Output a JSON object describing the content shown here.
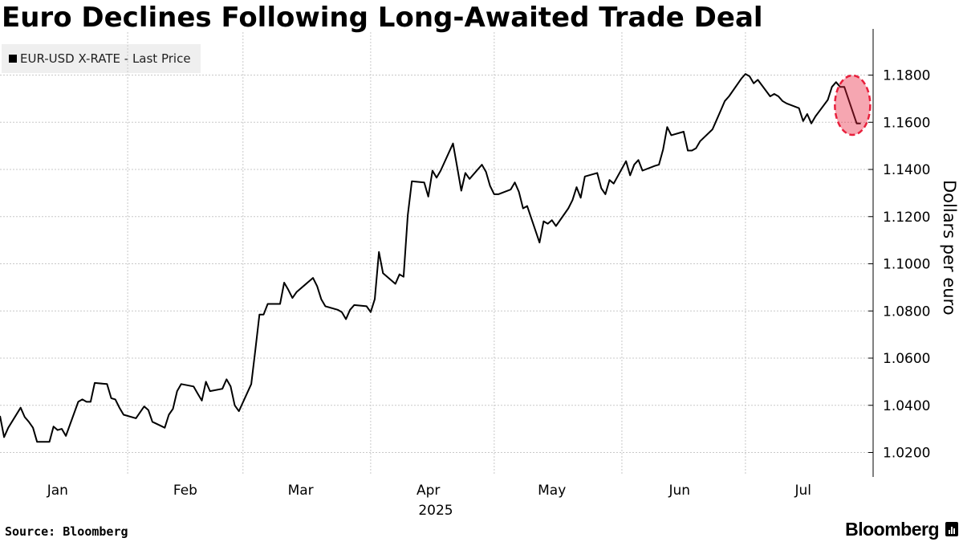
{
  "title": "Euro Declines Following Long-Awaited Trade Deal",
  "legend": {
    "label": "EUR-USD X-RATE - Last Price",
    "color": "#000000"
  },
  "source": "Source: Bloomberg",
  "brand": "Bloomberg",
  "brand_icon": "bloomberg-terminal-icon",
  "chart_data": {
    "type": "line",
    "title": "Euro Declines Following Long-Awaited Trade Deal",
    "xlabel": "2025",
    "ylabel": "Dollars per euro",
    "x_tick_labels": [
      "Jan",
      "Feb",
      "Mar",
      "Apr",
      "May",
      "Jun",
      "Jul"
    ],
    "x_tick_days": [
      15,
      46,
      74,
      105,
      135,
      166,
      196
    ],
    "y_ticks": [
      1.02,
      1.04,
      1.06,
      1.08,
      1.1,
      1.12,
      1.14,
      1.16,
      1.18
    ],
    "y_tick_labels": [
      "1.0200",
      "1.0400",
      "1.0600",
      "1.0800",
      "1.1000",
      "1.1200",
      "1.1400",
      "1.1600",
      "1.1800"
    ],
    "ylim": [
      1.0103,
      1.1955
    ],
    "xlim": [
      "2025-01-01",
      "2025-08-01"
    ],
    "y_axis_side": "right",
    "grid": true,
    "highlight": {
      "x_range": [
        "2025-07-25",
        "2025-07-29"
      ],
      "color": "#e8203c"
    },
    "series": [
      {
        "name": "EUR-USD X-RATE - Last Price",
        "color": "#000000",
        "x": [
          "2025-01-01",
          "2025-01-02",
          "2025-01-03",
          "2025-01-06",
          "2025-01-07",
          "2025-01-08",
          "2025-01-09",
          "2025-01-10",
          "2025-01-13",
          "2025-01-14",
          "2025-01-15",
          "2025-01-16",
          "2025-01-17",
          "2025-01-20",
          "2025-01-21",
          "2025-01-22",
          "2025-01-23",
          "2025-01-24",
          "2025-01-27",
          "2025-01-28",
          "2025-01-29",
          "2025-01-30",
          "2025-01-31",
          "2025-02-03",
          "2025-02-04",
          "2025-02-05",
          "2025-02-06",
          "2025-02-07",
          "2025-02-10",
          "2025-02-11",
          "2025-02-12",
          "2025-02-13",
          "2025-02-14",
          "2025-02-17",
          "2025-02-18",
          "2025-02-19",
          "2025-02-20",
          "2025-02-21",
          "2025-02-24",
          "2025-02-25",
          "2025-02-26",
          "2025-02-27",
          "2025-02-28",
          "2025-03-03",
          "2025-03-04",
          "2025-03-05",
          "2025-03-06",
          "2025-03-07",
          "2025-03-10",
          "2025-03-11",
          "2025-03-12",
          "2025-03-13",
          "2025-03-14",
          "2025-03-17",
          "2025-03-18",
          "2025-03-19",
          "2025-03-20",
          "2025-03-21",
          "2025-03-24",
          "2025-03-25",
          "2025-03-26",
          "2025-03-27",
          "2025-03-28",
          "2025-03-31",
          "2025-04-01",
          "2025-04-02",
          "2025-04-03",
          "2025-04-04",
          "2025-04-07",
          "2025-04-08",
          "2025-04-09",
          "2025-04-10",
          "2025-04-11",
          "2025-04-14",
          "2025-04-15",
          "2025-04-16",
          "2025-04-17",
          "2025-04-18",
          "2025-04-21",
          "2025-04-22",
          "2025-04-23",
          "2025-04-24",
          "2025-04-25",
          "2025-04-28",
          "2025-04-29",
          "2025-04-30",
          "2025-05-01",
          "2025-05-02",
          "2025-05-05",
          "2025-05-06",
          "2025-05-07",
          "2025-05-08",
          "2025-05-09",
          "2025-05-12",
          "2025-05-13",
          "2025-05-14",
          "2025-05-15",
          "2025-05-16",
          "2025-05-19",
          "2025-05-20",
          "2025-05-21",
          "2025-05-22",
          "2025-05-23",
          "2025-05-26",
          "2025-05-27",
          "2025-05-28",
          "2025-05-29",
          "2025-05-30",
          "2025-06-02",
          "2025-06-03",
          "2025-06-04",
          "2025-06-05",
          "2025-06-06",
          "2025-06-09",
          "2025-06-10",
          "2025-06-11",
          "2025-06-12",
          "2025-06-13",
          "2025-06-16",
          "2025-06-17",
          "2025-06-18",
          "2025-06-19",
          "2025-06-20",
          "2025-06-23",
          "2025-06-24",
          "2025-06-25",
          "2025-06-26",
          "2025-06-27",
          "2025-06-30",
          "2025-07-01",
          "2025-07-02",
          "2025-07-03",
          "2025-07-04",
          "2025-07-07",
          "2025-07-08",
          "2025-07-09",
          "2025-07-10",
          "2025-07-11",
          "2025-07-14",
          "2025-07-15",
          "2025-07-16",
          "2025-07-17",
          "2025-07-18",
          "2025-07-21",
          "2025-07-22",
          "2025-07-23",
          "2025-07-24",
          "2025-07-25",
          "2025-07-28",
          "2025-07-29"
        ],
        "y": [
          1.0355,
          1.0265,
          1.0305,
          1.039,
          1.035,
          1.033,
          1.0305,
          1.0245,
          1.0245,
          1.031,
          1.0295,
          1.03,
          1.027,
          1.0415,
          1.0425,
          1.0415,
          1.0415,
          1.0495,
          1.049,
          1.043,
          1.0425,
          1.039,
          1.036,
          1.0345,
          1.037,
          1.0395,
          1.038,
          1.033,
          1.0305,
          1.036,
          1.0385,
          1.046,
          1.049,
          1.048,
          1.045,
          1.042,
          1.05,
          1.046,
          1.047,
          1.051,
          1.048,
          1.04,
          1.0375,
          1.049,
          1.0635,
          1.0785,
          1.0785,
          1.083,
          1.083,
          1.092,
          1.089,
          1.0855,
          1.088,
          1.0925,
          1.094,
          1.0905,
          1.085,
          1.082,
          1.0805,
          1.0795,
          1.0765,
          1.0805,
          1.0825,
          1.082,
          1.0795,
          1.085,
          1.105,
          1.096,
          1.0915,
          1.0955,
          1.0945,
          1.1205,
          1.135,
          1.1345,
          1.1285,
          1.1395,
          1.1365,
          1.1395,
          1.151,
          1.141,
          1.131,
          1.1385,
          1.136,
          1.142,
          1.139,
          1.133,
          1.1295,
          1.1295,
          1.1315,
          1.1345,
          1.1305,
          1.1235,
          1.1245,
          1.109,
          1.118,
          1.117,
          1.1185,
          1.116,
          1.1235,
          1.127,
          1.1325,
          1.128,
          1.137,
          1.1385,
          1.132,
          1.1295,
          1.1355,
          1.134,
          1.1435,
          1.1375,
          1.142,
          1.144,
          1.1395,
          1.1415,
          1.142,
          1.1485,
          1.158,
          1.1545,
          1.156,
          1.148,
          1.148,
          1.149,
          1.152,
          1.157,
          1.161,
          1.165,
          1.169,
          1.171,
          1.1785,
          1.1805,
          1.1795,
          1.1765,
          1.178,
          1.171,
          1.172,
          1.171,
          1.169,
          1.168,
          1.166,
          1.1605,
          1.1635,
          1.1595,
          1.1625,
          1.1695,
          1.175,
          1.177,
          1.175,
          1.175,
          1.1595,
          1.1595
        ]
      }
    ]
  }
}
